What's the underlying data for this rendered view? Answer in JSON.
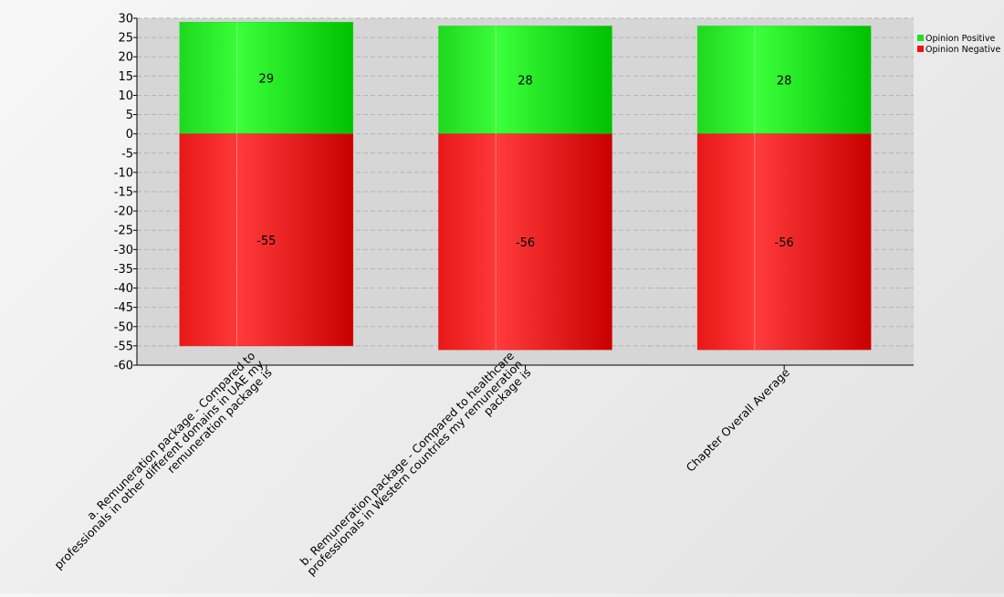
{
  "chart_data": {
    "type": "bar",
    "stacked": true,
    "categories": [
      [
        "a. Remuneration package - Compared to",
        "professionals in other different domains in UAE my",
        "remuneration package is"
      ],
      [
        "b. Remuneration package - Compared to healthcare",
        "professionals in Western countries my remuneration",
        "package is"
      ],
      [
        "Chapter Overall Average"
      ]
    ],
    "series": [
      {
        "name": "Opinion Positive",
        "values": [
          29,
          28,
          28
        ],
        "color": "#22dd22"
      },
      {
        "name": "Opinion Negative",
        "values": [
          -55,
          -56,
          -56
        ],
        "color": "#ee1111"
      }
    ],
    "ylim": [
      -60,
      30
    ],
    "ytick_step": 5,
    "grid": true,
    "legend_position": "top-right",
    "title": "",
    "xlabel": "",
    "ylabel": ""
  }
}
